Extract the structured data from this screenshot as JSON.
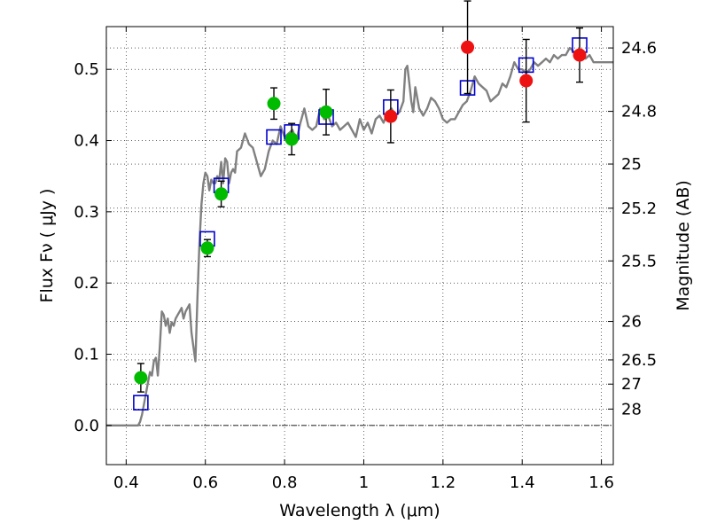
{
  "chart_data": {
    "type": "scatter",
    "xlabel": "Wavelength  λ (μm)",
    "ylabel": "Flux  Fν  ( μJy )",
    "y2label": "Magnitude (AB)",
    "xlim": [
      0.35,
      1.63
    ],
    "ylim": [
      -0.055,
      0.56
    ],
    "grid": true,
    "x_ticks": [
      0.4,
      0.6,
      0.8,
      1.0,
      1.2,
      1.4,
      1.6
    ],
    "x_tick_labels": [
      "0.4",
      "0.6",
      "0.8",
      "1",
      "1.2",
      "1.4",
      "1.6"
    ],
    "y_ticks": [
      0.0,
      0.1,
      0.2,
      0.3,
      0.4,
      0.5
    ],
    "y_tick_labels": [
      "0.0",
      "0.1",
      "0.2",
      "0.3",
      "0.4",
      "0.5"
    ],
    "magnitude_ticks": [
      {
        "label": "24.6",
        "flux": 0.53
      },
      {
        "label": "24.8",
        "flux": 0.441
      },
      {
        "label": "25",
        "flux": 0.367
      },
      {
        "label": "25.2",
        "flux": 0.305
      },
      {
        "label": "25.5",
        "flux": 0.231
      },
      {
        "label": "26",
        "flux": 0.146
      },
      {
        "label": "26.5",
        "flux": 0.092
      },
      {
        "label": "27",
        "flux": 0.058
      },
      {
        "label": "28",
        "flux": 0.023
      }
    ],
    "model_spectrum": {
      "color": "#808080",
      "points": [
        [
          0.35,
          0.0
        ],
        [
          0.43,
          0.0
        ],
        [
          0.435,
          0.005
        ],
        [
          0.44,
          0.015
        ],
        [
          0.445,
          0.03
        ],
        [
          0.45,
          0.045
        ],
        [
          0.455,
          0.06
        ],
        [
          0.46,
          0.075
        ],
        [
          0.465,
          0.07
        ],
        [
          0.47,
          0.09
        ],
        [
          0.475,
          0.095
        ],
        [
          0.48,
          0.07
        ],
        [
          0.485,
          0.11
        ],
        [
          0.49,
          0.16
        ],
        [
          0.495,
          0.155
        ],
        [
          0.5,
          0.14
        ],
        [
          0.505,
          0.15
        ],
        [
          0.51,
          0.13
        ],
        [
          0.515,
          0.145
        ],
        [
          0.52,
          0.14
        ],
        [
          0.525,
          0.15
        ],
        [
          0.53,
          0.155
        ],
        [
          0.535,
          0.16
        ],
        [
          0.54,
          0.165
        ],
        [
          0.545,
          0.15
        ],
        [
          0.55,
          0.16
        ],
        [
          0.555,
          0.165
        ],
        [
          0.56,
          0.17
        ],
        [
          0.565,
          0.13
        ],
        [
          0.57,
          0.11
        ],
        [
          0.575,
          0.09
        ],
        [
          0.58,
          0.18
        ],
        [
          0.585,
          0.255
        ],
        [
          0.59,
          0.31
        ],
        [
          0.595,
          0.34
        ],
        [
          0.6,
          0.355
        ],
        [
          0.605,
          0.35
        ],
        [
          0.61,
          0.33
        ],
        [
          0.615,
          0.345
        ],
        [
          0.62,
          0.34
        ],
        [
          0.625,
          0.34
        ],
        [
          0.63,
          0.35
        ],
        [
          0.635,
          0.345
        ],
        [
          0.64,
          0.37
        ],
        [
          0.645,
          0.34
        ],
        [
          0.65,
          0.375
        ],
        [
          0.655,
          0.37
        ],
        [
          0.66,
          0.34
        ],
        [
          0.665,
          0.355
        ],
        [
          0.67,
          0.36
        ],
        [
          0.675,
          0.355
        ],
        [
          0.68,
          0.385
        ],
        [
          0.69,
          0.39
        ],
        [
          0.7,
          0.41
        ],
        [
          0.71,
          0.395
        ],
        [
          0.72,
          0.39
        ],
        [
          0.73,
          0.37
        ],
        [
          0.74,
          0.35
        ],
        [
          0.75,
          0.36
        ],
        [
          0.76,
          0.385
        ],
        [
          0.77,
          0.4
        ],
        [
          0.78,
          0.395
        ],
        [
          0.79,
          0.42
        ],
        [
          0.8,
          0.405
        ],
        [
          0.81,
          0.41
        ],
        [
          0.82,
          0.415
        ],
        [
          0.83,
          0.4
        ],
        [
          0.84,
          0.425
        ],
        [
          0.85,
          0.445
        ],
        [
          0.86,
          0.42
        ],
        [
          0.87,
          0.415
        ],
        [
          0.88,
          0.42
        ],
        [
          0.89,
          0.445
        ],
        [
          0.9,
          0.43
        ],
        [
          0.91,
          0.435
        ],
        [
          0.92,
          0.42
        ],
        [
          0.93,
          0.425
        ],
        [
          0.94,
          0.415
        ],
        [
          0.95,
          0.42
        ],
        [
          0.96,
          0.425
        ],
        [
          0.97,
          0.415
        ],
        [
          0.98,
          0.405
        ],
        [
          0.99,
          0.43
        ],
        [
          1.0,
          0.415
        ],
        [
          1.01,
          0.425
        ],
        [
          1.02,
          0.41
        ],
        [
          1.03,
          0.43
        ],
        [
          1.04,
          0.435
        ],
        [
          1.05,
          0.425
        ],
        [
          1.06,
          0.44
        ],
        [
          1.07,
          0.445
        ],
        [
          1.08,
          0.435
        ],
        [
          1.09,
          0.44
        ],
        [
          1.1,
          0.455
        ],
        [
          1.105,
          0.5
        ],
        [
          1.11,
          0.505
        ],
        [
          1.115,
          0.48
        ],
        [
          1.12,
          0.455
        ],
        [
          1.125,
          0.44
        ],
        [
          1.13,
          0.475
        ],
        [
          1.14,
          0.445
        ],
        [
          1.15,
          0.435
        ],
        [
          1.16,
          0.445
        ],
        [
          1.17,
          0.46
        ],
        [
          1.18,
          0.455
        ],
        [
          1.19,
          0.445
        ],
        [
          1.2,
          0.43
        ],
        [
          1.21,
          0.425
        ],
        [
          1.22,
          0.43
        ],
        [
          1.23,
          0.43
        ],
        [
          1.24,
          0.44
        ],
        [
          1.25,
          0.45
        ],
        [
          1.26,
          0.455
        ],
        [
          1.27,
          0.47
        ],
        [
          1.28,
          0.49
        ],
        [
          1.29,
          0.48
        ],
        [
          1.3,
          0.475
        ],
        [
          1.31,
          0.47
        ],
        [
          1.32,
          0.455
        ],
        [
          1.33,
          0.46
        ],
        [
          1.34,
          0.465
        ],
        [
          1.35,
          0.48
        ],
        [
          1.36,
          0.475
        ],
        [
          1.37,
          0.49
        ],
        [
          1.38,
          0.51
        ],
        [
          1.39,
          0.5
        ],
        [
          1.4,
          0.5
        ],
        [
          1.41,
          0.495
        ],
        [
          1.42,
          0.5
        ],
        [
          1.43,
          0.51
        ],
        [
          1.44,
          0.505
        ],
        [
          1.45,
          0.51
        ],
        [
          1.46,
          0.515
        ],
        [
          1.47,
          0.51
        ],
        [
          1.48,
          0.52
        ],
        [
          1.49,
          0.515
        ],
        [
          1.5,
          0.52
        ],
        [
          1.51,
          0.52
        ],
        [
          1.52,
          0.53
        ],
        [
          1.53,
          0.525
        ],
        [
          1.54,
          0.52
        ],
        [
          1.55,
          0.52
        ],
        [
          1.56,
          0.515
        ],
        [
          1.57,
          0.52
        ],
        [
          1.58,
          0.51
        ],
        [
          1.59,
          0.51
        ],
        [
          1.6,
          0.51
        ],
        [
          1.63,
          0.51
        ]
      ]
    },
    "model_photometry": {
      "color": "#0000cc",
      "marker": "open-square",
      "points": [
        [
          0.437,
          0.032
        ],
        [
          0.605,
          0.262
        ],
        [
          0.64,
          0.337
        ],
        [
          0.773,
          0.405
        ],
        [
          0.818,
          0.412
        ],
        [
          0.905,
          0.433
        ],
        [
          1.068,
          0.447
        ],
        [
          1.262,
          0.474
        ],
        [
          1.41,
          0.506
        ],
        [
          1.545,
          0.534
        ]
      ]
    },
    "series": [
      {
        "color": "#00bb00",
        "points": [
          {
            "x": 0.437,
            "y": 0.067,
            "err": 0.02
          },
          {
            "x": 0.605,
            "y": 0.249,
            "err": 0.012
          },
          {
            "x": 0.64,
            "y": 0.325,
            "err": 0.018
          },
          {
            "x": 0.773,
            "y": 0.452,
            "err": 0.022
          },
          {
            "x": 0.818,
            "y": 0.402,
            "err": 0.022
          },
          {
            "x": 0.905,
            "y": 0.44,
            "err": 0.032
          }
        ]
      },
      {
        "color": "#ee1111",
        "points": [
          {
            "x": 1.068,
            "y": 0.434,
            "err": 0.037
          },
          {
            "x": 1.262,
            "y": 0.531,
            "err": 0.065
          },
          {
            "x": 1.41,
            "y": 0.484,
            "err": 0.058
          },
          {
            "x": 1.545,
            "y": 0.52,
            "err": 0.038
          }
        ]
      }
    ]
  }
}
